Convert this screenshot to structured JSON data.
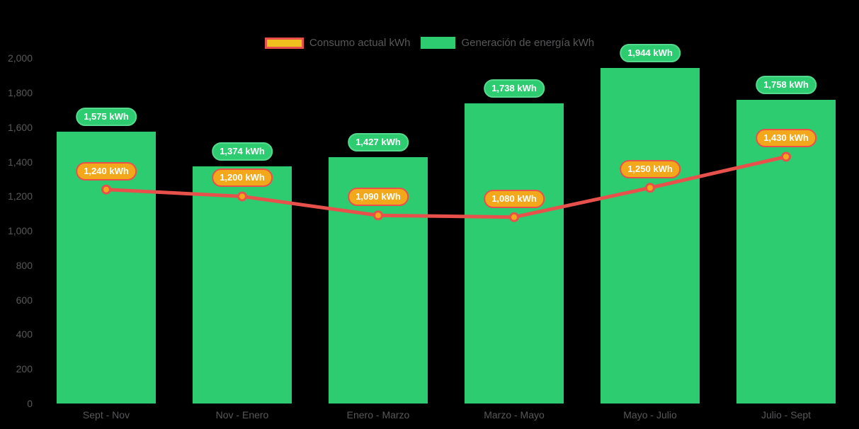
{
  "legend": {
    "items": [
      {
        "label": "Consumo actual kWh"
      },
      {
        "label": "Generación de energía kWh"
      }
    ]
  },
  "colors": {
    "background": "#000000",
    "bar": "#2ecc71",
    "bar_label_border": "#55d98d",
    "line": "#e8514b",
    "marker_fill": "#f3a71b",
    "line_label_fill": "#f3a71b",
    "line_label_border": "#e8514b",
    "legend_swatch_yellow": "#f0c11e",
    "axis_text": "#58585a",
    "pill_text": "#ffffff"
  },
  "chart_data": {
    "type": "bar+line",
    "title": "",
    "xlabel": "",
    "ylabel": "",
    "categories": [
      "Sept - Nov",
      "Nov - Enero",
      "Enero - Marzo",
      "Marzo - Mayo",
      "Mayo - Julio",
      "Julio - Sept"
    ],
    "series": [
      {
        "name": "Generación de energía kWh",
        "type": "bar",
        "color": "#2ecc71",
        "values": [
          1575,
          1374,
          1427,
          1738,
          1944,
          1758
        ],
        "labels": [
          "1,575 kWh",
          "1,374 kWh",
          "1,427 kWh",
          "1,738 kWh",
          "1,944 kWh",
          "1,758 kWh"
        ]
      },
      {
        "name": "Consumo actual kWh",
        "type": "line",
        "color": "#e8514b",
        "marker_color": "#f3a71b",
        "values": [
          1240,
          1200,
          1090,
          1080,
          1250,
          1430
        ],
        "labels": [
          "1,240 kWh",
          "1,200 kWh",
          "1,090 kWh",
          "1,080 kWh",
          "1,250 kWh",
          "1,430 kWh"
        ]
      }
    ],
    "ylim": [
      0,
      2000
    ],
    "ytick_step": 200,
    "ytick_labels": [
      "0",
      "200",
      "400",
      "600",
      "800",
      "1,000",
      "1,200",
      "1,400",
      "1,600",
      "1,800",
      "2,000"
    ],
    "grid": false,
    "legend_position": "top",
    "background": "#000000"
  }
}
